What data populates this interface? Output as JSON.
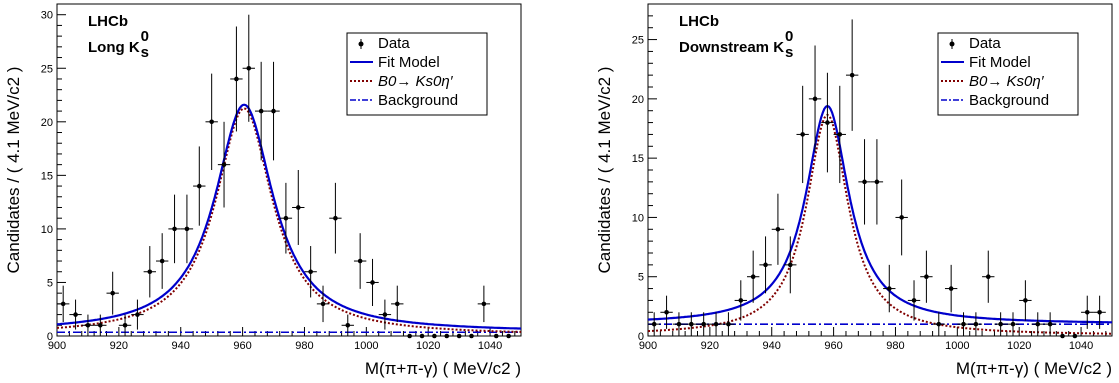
{
  "chart_data": [
    {
      "type": "scatter",
      "title": "",
      "labels": [
        "LHCb",
        "Long K",
        "s",
        "0"
      ],
      "xlabel": "M(π+π-γ) ( MeV/c2 )",
      "ylabel": "Candidates / ( 4.1 MeV/c2 )",
      "xlim": [
        900,
        1050
      ],
      "ylim": [
        0,
        31
      ],
      "xticks": [
        "900",
        "920",
        "940",
        "960",
        "980",
        "1000",
        "1020",
        "1040"
      ],
      "yticks": [
        "0",
        "5",
        "10",
        "15",
        "20",
        "25",
        "30"
      ],
      "legend_position": "top-right",
      "legend": [
        "Data",
        "Fit Model",
        "B0→ Ks0η′",
        "Background"
      ],
      "colors": {
        "data": "#000000",
        "fit": "#0000cc",
        "signal": "#800000",
        "background": "#0000cc"
      },
      "series": [
        {
          "name": "Data",
          "x": [
            902,
            906,
            910,
            914,
            918,
            922,
            926,
            930,
            934,
            938,
            942,
            946,
            950,
            954,
            958,
            962,
            966,
            970,
            974,
            978,
            982,
            986,
            990,
            994,
            998,
            1002,
            1006,
            1010,
            1014,
            1018,
            1022,
            1026,
            1030,
            1034,
            1038,
            1042,
            1046
          ],
          "y": [
            3,
            2,
            1,
            1,
            4,
            1,
            2,
            6,
            7,
            10,
            10,
            14,
            20,
            16,
            24,
            25,
            21,
            21,
            11,
            12,
            6,
            3,
            11,
            1,
            7,
            5,
            2,
            3,
            0,
            0,
            0,
            0,
            0,
            0,
            3,
            0,
            0
          ],
          "yerr": [
            1.7,
            1.4,
            1.0,
            1.0,
            2.0,
            1.0,
            1.4,
            2.4,
            2.6,
            3.2,
            3.2,
            3.7,
            4.5,
            4.0,
            4.9,
            5.0,
            4.6,
            4.6,
            3.3,
            3.5,
            2.4,
            1.7,
            3.3,
            1.0,
            2.6,
            2.2,
            1.4,
            1.7,
            0,
            0,
            0,
            0,
            0,
            0,
            1.7,
            0,
            0
          ]
        },
        {
          "name": "Fit Model",
          "peak": 21.6,
          "mean": 960.5,
          "width": 11.5,
          "background": 0.35
        },
        {
          "name": "B0→ Ks0η′",
          "peak": 21.2,
          "mean": 960.5,
          "width": 11.2
        },
        {
          "name": "Background",
          "level": 0.35
        }
      ]
    },
    {
      "type": "scatter",
      "title": "",
      "labels": [
        "LHCb",
        "Downstream K",
        "s",
        "0"
      ],
      "xlabel": "M(π+π-γ) ( MeV/c2 )",
      "ylabel": "Candidates / ( 4.1 MeV/c2 )",
      "xlim": [
        900,
        1050
      ],
      "ylim": [
        0,
        28
      ],
      "xticks": [
        "900",
        "920",
        "940",
        "960",
        "980",
        "1000",
        "1020",
        "1040"
      ],
      "yticks": [
        "0",
        "5",
        "10",
        "15",
        "20",
        "25"
      ],
      "legend_position": "top-right",
      "legend": [
        "Data",
        "Fit Model",
        "B0→ Ks0η′",
        "Background"
      ],
      "colors": {
        "data": "#000000",
        "fit": "#0000cc",
        "signal": "#800000",
        "background": "#0000cc"
      },
      "series": [
        {
          "name": "Data",
          "x": [
            902,
            906,
            910,
            914,
            918,
            922,
            926,
            930,
            934,
            938,
            942,
            946,
            950,
            954,
            958,
            962,
            966,
            970,
            974,
            978,
            982,
            986,
            990,
            994,
            998,
            1002,
            1006,
            1010,
            1014,
            1018,
            1022,
            1026,
            1030,
            1034,
            1038,
            1042,
            1046
          ],
          "y": [
            1,
            2,
            1,
            1,
            1,
            1,
            1,
            3,
            5,
            6,
            9,
            6,
            17,
            20,
            18,
            17,
            22,
            13,
            13,
            4,
            10,
            3,
            5,
            1,
            4,
            1,
            1,
            5,
            1,
            1,
            3,
            1,
            1,
            0,
            0,
            2,
            2
          ],
          "yerr": [
            1.0,
            1.4,
            1.0,
            1.0,
            1.0,
            1.0,
            1.0,
            1.7,
            2.2,
            2.4,
            3.0,
            2.4,
            4.1,
            4.5,
            4.2,
            4.1,
            4.7,
            3.6,
            3.6,
            2.0,
            3.2,
            1.7,
            2.2,
            1.0,
            2.0,
            1.0,
            1.0,
            2.2,
            1.0,
            1.0,
            1.7,
            1.0,
            1.0,
            0,
            0,
            1.4,
            1.4
          ]
        },
        {
          "name": "Fit Model",
          "peak": 19.4,
          "mean": 958,
          "width": 8.5,
          "background": 1.0
        },
        {
          "name": "B0→ Ks0η′",
          "peak": 18.6,
          "mean": 958,
          "width": 8.2
        },
        {
          "name": "Background",
          "level": 1.0
        }
      ]
    }
  ]
}
